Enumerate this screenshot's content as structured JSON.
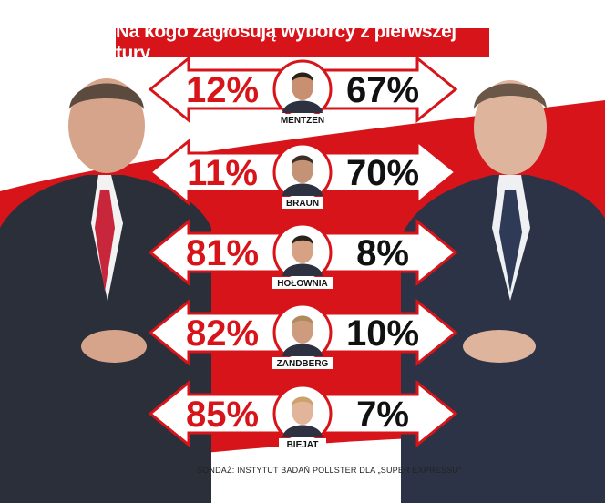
{
  "title": "Na kogo zagłosują wyborcy z pierwszej tury",
  "source": "SONDAŻ:  INSTYTUT BADAŃ POLLSTER DLA „SUPER EXPRESSU”",
  "colors": {
    "accent": "#d7141a",
    "left_text": "#d7141a",
    "right_text": "#111111"
  },
  "chart_data": {
    "type": "bar",
    "title": "Na kogo zagłosują wyborcy z pierwszej tury",
    "categories": [
      "MENTZEN",
      "BRAUN",
      "HOŁOWNIA",
      "ZANDBERG",
      "BIEJAT"
    ],
    "series": [
      {
        "values": [
          "12%",
          "11%",
          "81%",
          "82%",
          "85%"
        ]
      },
      {
        "values": [
          "67%",
          "70%",
          "8%",
          "10%",
          "7%"
        ]
      }
    ],
    "values_left": [
      12,
      11,
      81,
      82,
      85
    ],
    "values_right": [
      67,
      70,
      8,
      10,
      7
    ],
    "source": "SONDAŻ:  INSTYTUT BADAŃ POLLSTER DLA „SUPER EXPRESSU”"
  }
}
